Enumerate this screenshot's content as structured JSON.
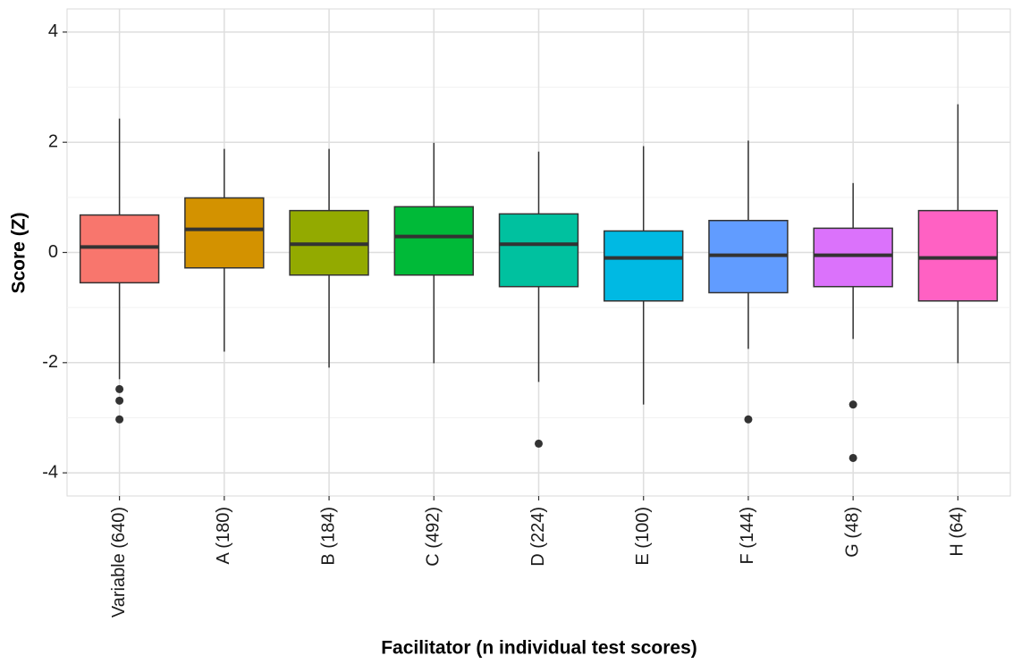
{
  "chart_data": {
    "type": "box",
    "x_label": "Facilitator (n individual test scores)",
    "y_label": "Score (Z)",
    "categories": [
      "Variable (640)",
      "A (180)",
      "B (184)",
      "C (492)",
      "D (224)",
      "E (100)",
      "F (144)",
      "G (48)",
      "H (64)"
    ],
    "colors": [
      "#F8766D",
      "#D39200",
      "#93AA00",
      "#00BA38",
      "#00C19F",
      "#00B9E3",
      "#619CFF",
      "#DB72FB",
      "#FF61C3"
    ],
    "boxes": [
      {
        "whisker_low": -2.3,
        "q1": -0.55,
        "median": 0.1,
        "q3": 0.68,
        "whisker_high": 2.43,
        "outliers": [
          -2.48,
          -2.69,
          -3.03
        ]
      },
      {
        "whisker_low": -1.8,
        "q1": -0.28,
        "median": 0.42,
        "q3": 0.99,
        "whisker_high": 1.88,
        "outliers": []
      },
      {
        "whisker_low": -2.09,
        "q1": -0.41,
        "median": 0.15,
        "q3": 0.76,
        "whisker_high": 1.88,
        "outliers": []
      },
      {
        "whisker_low": -2.01,
        "q1": -0.41,
        "median": 0.29,
        "q3": 0.83,
        "whisker_high": 1.99,
        "outliers": []
      },
      {
        "whisker_low": -2.35,
        "q1": -0.62,
        "median": 0.15,
        "q3": 0.7,
        "whisker_high": 1.83,
        "outliers": [
          -3.47
        ]
      },
      {
        "whisker_low": -2.76,
        "q1": -0.88,
        "median": -0.1,
        "q3": 0.39,
        "whisker_high": 1.93,
        "outliers": []
      },
      {
        "whisker_low": -1.75,
        "q1": -0.73,
        "median": -0.05,
        "q3": 0.58,
        "whisker_high": 2.03,
        "outliers": [
          -3.03
        ]
      },
      {
        "whisker_low": -1.57,
        "q1": -0.62,
        "median": -0.05,
        "q3": 0.44,
        "whisker_high": 1.26,
        "outliers": [
          -2.76,
          -3.73
        ]
      },
      {
        "whisker_low": -2.01,
        "q1": -0.88,
        "median": -0.1,
        "q3": 0.76,
        "whisker_high": 2.69,
        "outliers": []
      }
    ],
    "ylim": [
      -4.42,
      4.42
    ],
    "yticks": [
      -4,
      -2,
      0,
      2,
      4
    ],
    "minor_yticks": [
      -3,
      -1,
      1,
      3
    ],
    "grid": true
  }
}
